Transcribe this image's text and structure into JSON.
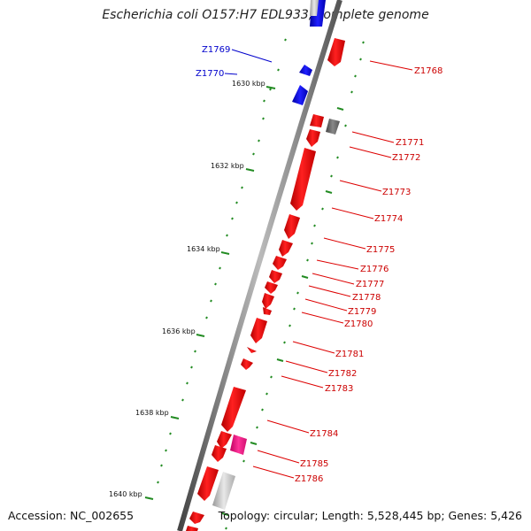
{
  "title": "Escherichia coli O157:H7 EDL933, complete genome",
  "footer": {
    "accession": "Accession: NC_002655",
    "summary": "Topology: circular; Length: 5,528,445 bp; Genes: 5,426"
  },
  "colors": {
    "forward_gene": "#ff0000",
    "reverse_gene": "#0000ff",
    "other_feature": "#ff1493",
    "gray_feature": "#808080",
    "tick": "#228b22",
    "backbone": "#777777"
  },
  "kbp_ticks": [
    "1630 kbp",
    "1632 kbp",
    "1634 kbp",
    "1636 kbp",
    "1638 kbp",
    "1640 kbp"
  ],
  "genes_left": [
    "Z1769",
    "Z1770"
  ],
  "genes_right": [
    "Z1768",
    "Z1771",
    "Z1772",
    "Z1773",
    "Z1774",
    "Z1775",
    "Z1776",
    "Z1777",
    "Z1778",
    "Z1779",
    "Z1780",
    "Z1781",
    "Z1782",
    "Z1783",
    "Z1784",
    "Z1785",
    "Z1786"
  ]
}
